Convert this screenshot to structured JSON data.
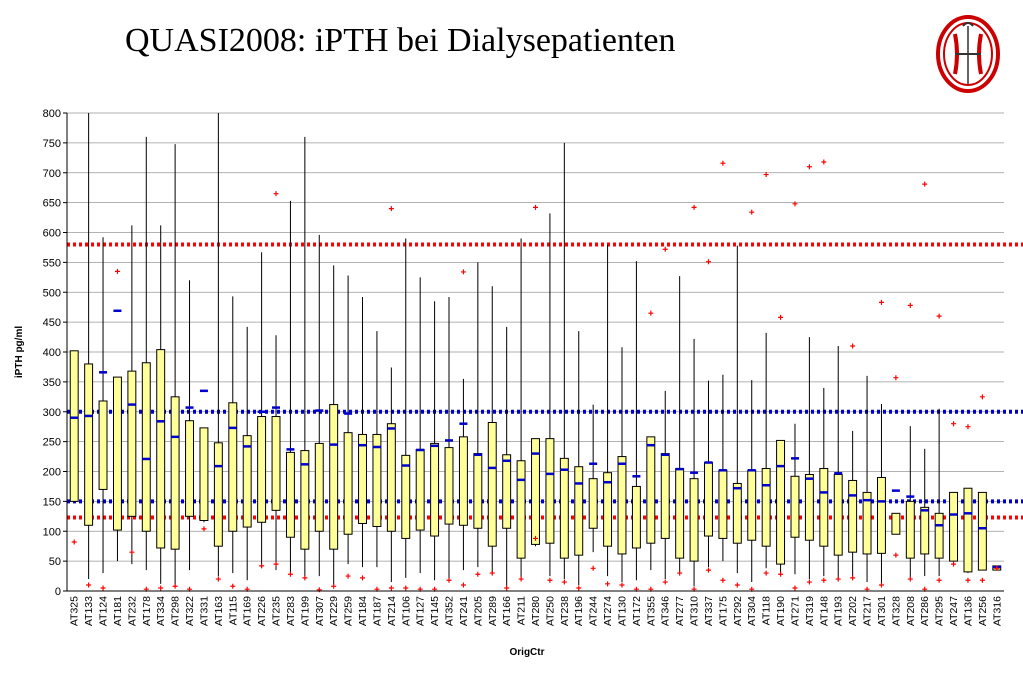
{
  "title": "QUASI2008: iPTH bei Dialysepatienten",
  "logo": "coat-of-arms-logo",
  "colors": {
    "box_fill": "#ffff99",
    "box_stroke": "#000000",
    "mean_marker": "#0000cc",
    "outlier_marker": "#ff0000",
    "reference_line_red": "#ff0000",
    "reference_line_blue": "#0000cc",
    "grid": "#999999"
  },
  "chart_data": {
    "type": "box",
    "title": "",
    "xlabel": "OrigCtr",
    "ylabel": "iPTH pg/ml",
    "ylim": [
      0,
      800
    ],
    "yticks": [
      0,
      50,
      100,
      150,
      200,
      250,
      300,
      350,
      400,
      450,
      500,
      550,
      600,
      650,
      700,
      750,
      800
    ],
    "grid": true,
    "reference_lines": [
      {
        "y": 580,
        "color": "red",
        "style": "dotted"
      },
      {
        "y": 300,
        "color": "blue",
        "style": "dotted"
      },
      {
        "y": 150,
        "color": "blue",
        "style": "dotted"
      },
      {
        "y": 123,
        "color": "red",
        "style": "dotted"
      }
    ],
    "categories": [
      "AT325",
      "AT133",
      "AT124",
      "AT181",
      "AT232",
      "AT178",
      "AT334",
      "AT298",
      "AT322",
      "AT331",
      "AT163",
      "AT115",
      "AT169",
      "AT226",
      "AT235",
      "AT283",
      "AT199",
      "AT307",
      "AT229",
      "AT259",
      "AT184",
      "AT187",
      "AT214",
      "AT106",
      "AT127",
      "AT145",
      "AT352",
      "AT241",
      "AT205",
      "AT289",
      "AT166",
      "AT211",
      "AT280",
      "AT250",
      "AT238",
      "AT196",
      "AT244",
      "AT274",
      "AT130",
      "AT172",
      "AT355",
      "AT346",
      "AT277",
      "AT310",
      "AT337",
      "AT175",
      "AT292",
      "AT304",
      "AT118",
      "AT190",
      "AT271",
      "AT319",
      "AT148",
      "AT193",
      "AT202",
      "AT217",
      "AT301",
      "AT328",
      "AT208",
      "AT286",
      "AT295",
      "AT247",
      "AT136",
      "AT256",
      "AT316"
    ],
    "boxes": [
      {
        "whisker_low": 150,
        "q1": 150,
        "q3": 402,
        "whisker_high": 402,
        "mean": 290,
        "outliers": [
          82
        ]
      },
      {
        "whisker_low": 20,
        "q1": 110,
        "q3": 380,
        "whisker_high": 800,
        "mean": 293,
        "outliers": [
          10
        ]
      },
      {
        "whisker_low": 30,
        "q1": 170,
        "q3": 318,
        "whisker_high": 592,
        "mean": 366,
        "outliers": [
          5
        ]
      },
      {
        "whisker_low": 50,
        "q1": 102,
        "q3": 358,
        "whisker_high": 358,
        "mean": 469,
        "outliers": [
          535
        ]
      },
      {
        "whisker_low": 45,
        "q1": 125,
        "q3": 368,
        "whisker_high": 612,
        "mean": 312,
        "outliers": [
          65
        ]
      },
      {
        "whisker_low": 35,
        "q1": 100,
        "q3": 382,
        "whisker_high": 760,
        "mean": 221,
        "outliers": [
          3
        ]
      },
      {
        "whisker_low": 12,
        "q1": 72,
        "q3": 404,
        "whisker_high": 612,
        "mean": 284,
        "outliers": [
          5
        ]
      },
      {
        "whisker_low": 8,
        "q1": 70,
        "q3": 325,
        "whisker_high": 748,
        "mean": 258,
        "outliers": [
          8
        ]
      },
      {
        "whisker_low": 35,
        "q1": 125,
        "q3": 285,
        "whisker_high": 520,
        "mean": 307,
        "outliers": [
          3
        ]
      },
      {
        "whisker_low": 115,
        "q1": 118,
        "q3": 273,
        "whisker_high": 273,
        "mean": 335,
        "outliers": [
          104
        ]
      },
      {
        "whisker_low": 25,
        "q1": 75,
        "q3": 248,
        "whisker_high": 800,
        "mean": 209,
        "outliers": [
          20
        ]
      },
      {
        "whisker_low": 30,
        "q1": 100,
        "q3": 315,
        "whisker_high": 493,
        "mean": 273,
        "outliers": [
          8
        ]
      },
      {
        "whisker_low": 18,
        "q1": 107,
        "q3": 260,
        "whisker_high": 442,
        "mean": 242,
        "outliers": [
          3
        ]
      },
      {
        "whisker_low": 40,
        "q1": 115,
        "q3": 292,
        "whisker_high": 567,
        "mean": 300,
        "outliers": [
          42
        ]
      },
      {
        "whisker_low": 35,
        "q1": 135,
        "q3": 292,
        "whisker_high": 428,
        "mean": 307,
        "outliers": [
          665,
          45
        ]
      },
      {
        "whisker_low": 30,
        "q1": 90,
        "q3": 232,
        "whisker_high": 653,
        "mean": 237,
        "outliers": [
          28
        ]
      },
      {
        "whisker_low": 25,
        "q1": 70,
        "q3": 235,
        "whisker_high": 760,
        "mean": 212,
        "outliers": [
          22
        ]
      },
      {
        "whisker_low": 25,
        "q1": 100,
        "q3": 247,
        "whisker_high": 596,
        "mean": 302,
        "outliers": [
          2
        ]
      },
      {
        "whisker_low": 10,
        "q1": 70,
        "q3": 312,
        "whisker_high": 545,
        "mean": 245,
        "outliers": [
          8
        ]
      },
      {
        "whisker_low": 45,
        "q1": 95,
        "q3": 265,
        "whisker_high": 528,
        "mean": 297,
        "outliers": [
          25
        ]
      },
      {
        "whisker_low": 40,
        "q1": 113,
        "q3": 262,
        "whisker_high": 492,
        "mean": 244,
        "outliers": [
          22
        ]
      },
      {
        "whisker_low": 40,
        "q1": 108,
        "q3": 262,
        "whisker_high": 435,
        "mean": 241,
        "outliers": [
          3
        ]
      },
      {
        "whisker_low": 15,
        "q1": 100,
        "q3": 280,
        "whisker_high": 374,
        "mean": 272,
        "outliers": [
          640,
          5
        ]
      },
      {
        "whisker_low": 22,
        "q1": 88,
        "q3": 227,
        "whisker_high": 590,
        "mean": 210,
        "outliers": [
          5
        ]
      },
      {
        "whisker_low": 30,
        "q1": 102,
        "q3": 237,
        "whisker_high": 525,
        "mean": 236,
        "outliers": [
          3
        ]
      },
      {
        "whisker_low": 18,
        "q1": 92,
        "q3": 247,
        "whisker_high": 485,
        "mean": 243,
        "outliers": [
          3
        ]
      },
      {
        "whisker_low": 20,
        "q1": 112,
        "q3": 240,
        "whisker_high": 492,
        "mean": 252,
        "outliers": [
          18
        ]
      },
      {
        "whisker_low": 35,
        "q1": 110,
        "q3": 258,
        "whisker_high": 355,
        "mean": 280,
        "outliers": [
          534,
          10
        ]
      },
      {
        "whisker_low": 40,
        "q1": 105,
        "q3": 230,
        "whisker_high": 550,
        "mean": 228,
        "outliers": [
          28
        ]
      },
      {
        "whisker_low": 28,
        "q1": 75,
        "q3": 282,
        "whisker_high": 510,
        "mean": 206,
        "outliers": [
          30
        ]
      },
      {
        "whisker_low": 8,
        "q1": 105,
        "q3": 228,
        "whisker_high": 442,
        "mean": 218,
        "outliers": [
          5
        ]
      },
      {
        "whisker_low": 20,
        "q1": 55,
        "q3": 218,
        "whisker_high": 590,
        "mean": 186,
        "outliers": [
          20
        ]
      },
      {
        "whisker_low": 75,
        "q1": 78,
        "q3": 255,
        "whisker_high": 255,
        "mean": 230,
        "outliers": [
          642,
          88
        ]
      },
      {
        "whisker_low": 25,
        "q1": 80,
        "q3": 255,
        "whisker_high": 632,
        "mean": 196,
        "outliers": [
          18
        ]
      },
      {
        "whisker_low": 20,
        "q1": 55,
        "q3": 222,
        "whisker_high": 750,
        "mean": 203,
        "outliers": [
          15
        ]
      },
      {
        "whisker_low": 10,
        "q1": 60,
        "q3": 208,
        "whisker_high": 435,
        "mean": 180,
        "outliers": [
          5
        ]
      },
      {
        "whisker_low": 65,
        "q1": 105,
        "q3": 188,
        "whisker_high": 312,
        "mean": 213,
        "outliers": [
          38
        ]
      },
      {
        "whisker_low": 25,
        "q1": 75,
        "q3": 198,
        "whisker_high": 580,
        "mean": 182,
        "outliers": [
          12
        ]
      },
      {
        "whisker_low": 15,
        "q1": 62,
        "q3": 225,
        "whisker_high": 408,
        "mean": 213,
        "outliers": [
          10
        ]
      },
      {
        "whisker_low": 18,
        "q1": 72,
        "q3": 175,
        "whisker_high": 552,
        "mean": 192,
        "outliers": [
          3
        ]
      },
      {
        "whisker_low": 35,
        "q1": 80,
        "q3": 258,
        "whisker_high": 258,
        "mean": 244,
        "outliers": [
          465,
          3
        ]
      },
      {
        "whisker_low": 20,
        "q1": 88,
        "q3": 230,
        "whisker_high": 335,
        "mean": 228,
        "outliers": [
          572,
          15
        ]
      },
      {
        "whisker_low": 30,
        "q1": 55,
        "q3": 205,
        "whisker_high": 527,
        "mean": 204,
        "outliers": [
          30
        ]
      },
      {
        "whisker_low": 8,
        "q1": 50,
        "q3": 188,
        "whisker_high": 422,
        "mean": 198,
        "outliers": [
          642,
          3
        ]
      },
      {
        "whisker_low": 40,
        "q1": 92,
        "q3": 215,
        "whisker_high": 352,
        "mean": 215,
        "outliers": [
          551,
          35
        ]
      },
      {
        "whisker_low": 50,
        "q1": 88,
        "q3": 202,
        "whisker_high": 362,
        "mean": 202,
        "outliers": [
          716,
          18
        ]
      },
      {
        "whisker_low": 30,
        "q1": 80,
        "q3": 180,
        "whisker_high": 578,
        "mean": 172,
        "outliers": [
          10
        ]
      },
      {
        "whisker_low": 15,
        "q1": 85,
        "q3": 202,
        "whisker_high": 353,
        "mean": 202,
        "outliers": [
          634,
          3
        ]
      },
      {
        "whisker_low": 38,
        "q1": 75,
        "q3": 205,
        "whisker_high": 432,
        "mean": 177,
        "outliers": [
          697,
          30
        ]
      },
      {
        "whisker_low": 30,
        "q1": 45,
        "q3": 252,
        "whisker_high": 252,
        "mean": 209,
        "outliers": [
          458,
          28
        ]
      },
      {
        "whisker_low": 28,
        "q1": 90,
        "q3": 192,
        "whisker_high": 280,
        "mean": 222,
        "outliers": [
          648,
          5
        ]
      },
      {
        "whisker_low": 20,
        "q1": 85,
        "q3": 195,
        "whisker_high": 425,
        "mean": 188,
        "outliers": [
          710,
          15
        ]
      },
      {
        "whisker_low": 25,
        "q1": 75,
        "q3": 205,
        "whisker_high": 340,
        "mean": 165,
        "outliers": [
          718,
          18
        ]
      },
      {
        "whisker_low": 20,
        "q1": 60,
        "q3": 195,
        "whisker_high": 410,
        "mean": 197,
        "outliers": [
          20
        ]
      },
      {
        "whisker_low": 25,
        "q1": 65,
        "q3": 185,
        "whisker_high": 268,
        "mean": 160,
        "outliers": [
          410,
          22
        ]
      },
      {
        "whisker_low": 15,
        "q1": 62,
        "q3": 165,
        "whisker_high": 360,
        "mean": 152,
        "outliers": [
          3
        ]
      },
      {
        "whisker_low": 12,
        "q1": 63,
        "q3": 190,
        "whisker_high": 313,
        "mean": 150,
        "outliers": [
          483,
          10
        ]
      },
      {
        "whisker_low": 95,
        "q1": 95,
        "q3": 130,
        "whisker_high": 130,
        "mean": 168,
        "outliers": [
          357,
          60
        ]
      },
      {
        "whisker_low": 22,
        "q1": 55,
        "q3": 150,
        "whisker_high": 276,
        "mean": 158,
        "outliers": [
          478,
          20
        ]
      },
      {
        "whisker_low": 25,
        "q1": 62,
        "q3": 140,
        "whisker_high": 238,
        "mean": 135,
        "outliers": [
          681,
          3
        ]
      },
      {
        "whisker_low": 25,
        "q1": 55,
        "q3": 130,
        "whisker_high": 305,
        "mean": 110,
        "outliers": [
          460,
          18
        ]
      },
      {
        "whisker_low": 50,
        "q1": 50,
        "q3": 165,
        "whisker_high": 165,
        "mean": 128,
        "outliers": [
          280,
          45
        ]
      },
      {
        "whisker_low": 30,
        "q1": 32,
        "q3": 172,
        "whisker_high": 172,
        "mean": 130,
        "outliers": [
          275,
          18
        ]
      },
      {
        "whisker_low": 35,
        "q1": 35,
        "q3": 165,
        "whisker_high": 165,
        "mean": 105,
        "outliers": [
          325,
          18
        ]
      },
      {
        "whisker_low": 35,
        "q1": 35,
        "q3": 42,
        "whisker_high": 42,
        "mean": 40,
        "outliers": [
          38
        ]
      }
    ]
  }
}
